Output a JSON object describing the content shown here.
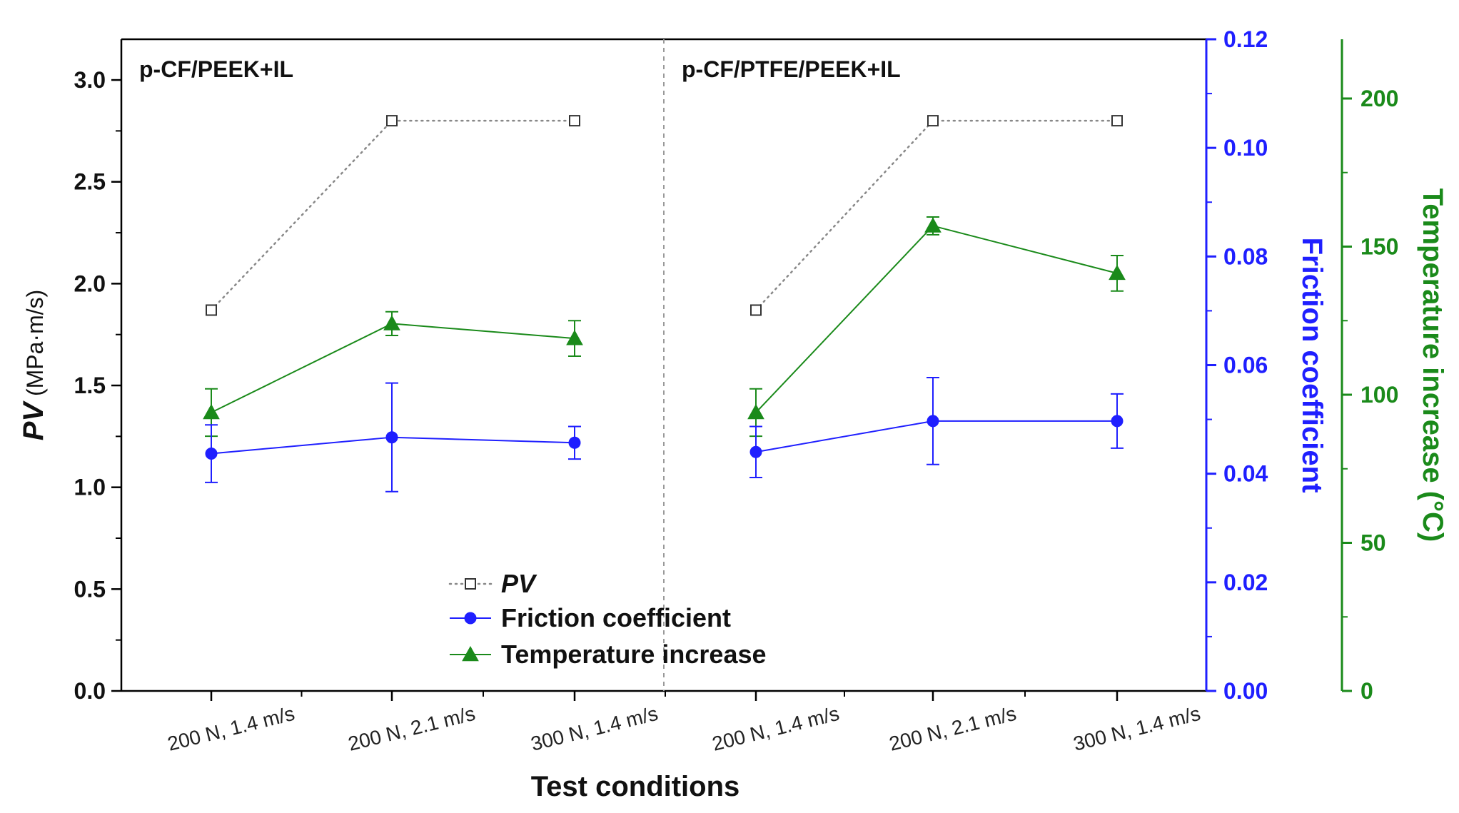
{
  "chart_data": {
    "type": "line",
    "xlabel": "Test conditions",
    "categories": [
      "200 N, 1.4 m/s",
      "200 N, 2.1 m/s",
      "300 N, 1.4 m/s"
    ],
    "panels": [
      {
        "title": "p-CF/PEEK+IL",
        "pv": [
          1.87,
          2.8,
          2.8
        ],
        "friction": [
          0.0437,
          0.0467,
          0.0457
        ],
        "friction_err": [
          0.0053,
          0.01,
          0.003
        ],
        "temperature": [
          94,
          124,
          119
        ],
        "temperature_err": [
          8,
          4,
          6
        ]
      },
      {
        "title": "p-CF/PTFE/PEEK+IL",
        "pv": [
          1.87,
          2.8,
          2.8
        ],
        "friction": [
          0.044,
          0.0497,
          0.0497
        ],
        "friction_err": [
          0.0047,
          0.008,
          0.005
        ],
        "temperature": [
          94,
          157,
          141
        ],
        "temperature_err": [
          8,
          3,
          6
        ]
      }
    ],
    "axes": {
      "left": {
        "label_italic": "PV",
        "label_rest": " (MPa·m/s)",
        "ylim": [
          0,
          3.2
        ],
        "ticks": [
          0.0,
          0.5,
          1.0,
          1.5,
          2.0,
          2.5,
          3.0
        ],
        "tick_labels": [
          "0.0",
          "0.5",
          "1.0",
          "1.5",
          "2.0",
          "2.5",
          "3.0"
        ],
        "color": "#000000"
      },
      "right_friction": {
        "label": "Friction coefficient",
        "ylim": [
          0,
          0.12
        ],
        "ticks": [
          0,
          0.02,
          0.04,
          0.06,
          0.08,
          0.1,
          0.12
        ],
        "tick_labels": [
          "0.00",
          "0.02",
          "0.04",
          "0.06",
          "0.08",
          "0.10",
          "0.12"
        ],
        "color": "#1f1fff"
      },
      "right_temperature": {
        "label": "Temperature increase (°C)",
        "ylim": [
          0,
          220
        ],
        "ticks": [
          0,
          50,
          100,
          150,
          200
        ],
        "tick_labels": [
          "0",
          "50",
          "100",
          "150",
          "200"
        ],
        "color": "#1a8a1a"
      }
    },
    "legend": {
      "placement": "bottom-center",
      "entries": [
        {
          "key": "pv",
          "label": "PV",
          "italic": true
        },
        {
          "key": "friction",
          "label": "Friction coefficient"
        },
        {
          "key": "temperature",
          "label": "Temperature increase"
        }
      ]
    },
    "series_colors": {
      "pv": "#888888",
      "friction": "#1f1fff",
      "temperature": "#1a8a1a"
    }
  }
}
